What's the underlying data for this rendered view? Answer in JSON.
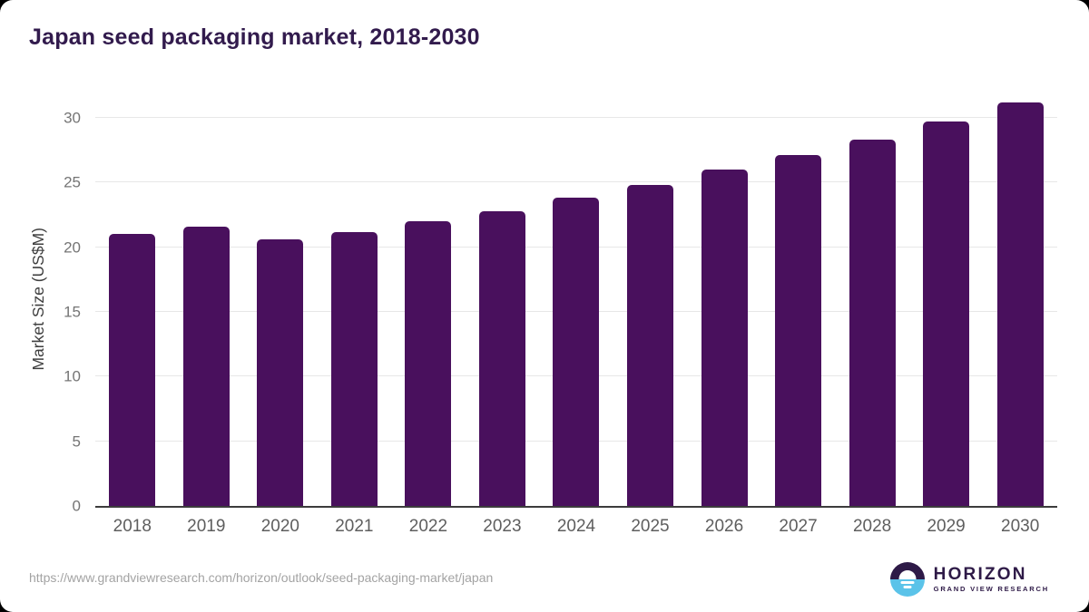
{
  "page": {
    "title": "Japan seed packaging market, 2018-2030",
    "source_url": "https://www.grandviewresearch.com/horizon/outlook/seed-packaging-market/japan"
  },
  "logo": {
    "brand": "HORIZON",
    "subbrand": "GRAND VIEW RESEARCH",
    "icon": "sun-over-water-icon",
    "colors": {
      "dark_purple": "#2E1A47",
      "light_blue": "#5BC3E9"
    }
  },
  "chart_data": {
    "type": "bar",
    "title": "Japan seed packaging market, 2018-2030",
    "categories": [
      "2018",
      "2019",
      "2020",
      "2021",
      "2022",
      "2023",
      "2024",
      "2025",
      "2026",
      "2027",
      "2028",
      "2029",
      "2030"
    ],
    "values": [
      21.0,
      21.6,
      20.6,
      21.2,
      22.0,
      22.8,
      23.8,
      24.8,
      26.0,
      27.1,
      28.3,
      29.7,
      31.2
    ],
    "xlabel": "",
    "ylabel": "Market Size (US$M)",
    "yticks": [
      0,
      5,
      10,
      15,
      20,
      25,
      30
    ],
    "ylim": [
      0,
      32.1
    ],
    "grid": true,
    "legend_position": "none",
    "bar_color": "#49105D",
    "axis_line_color": "#3C3C3C",
    "gridline_color": "#E7E7E7",
    "y_tick_color": "#757575",
    "x_tick_color": "#5E5E5E",
    "title_color": "#321B4D"
  }
}
